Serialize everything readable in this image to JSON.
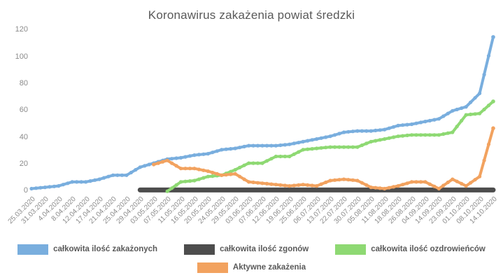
{
  "page": {
    "background": "#ffffff",
    "text_color": "#595959",
    "tick_color": "#8b8b8b"
  },
  "chart_data": {
    "type": "line",
    "title": "Koronawirus zakażenia powiat średzki",
    "xlabel": "",
    "ylabel": "",
    "ylim": [
      0,
      120
    ],
    "yticks": [
      0,
      20,
      40,
      60,
      80,
      100,
      120
    ],
    "grid": false,
    "axis_lines": false,
    "legend_position": "bottom",
    "x_tick_rotation": 45,
    "categories": [
      "25.03.2020",
      "31.03.2020",
      "4.04.2020",
      "8.04.2020",
      "12.04.2020",
      "17.04.2020",
      "21.04.2020",
      "25.04.2020",
      "29.04.2020",
      "03.05.2020",
      "07.05.2020",
      "11.05.2020",
      "16.05.2020",
      "20.05.2020",
      "24.05.2020",
      "29.05.2020",
      "03.06.2020",
      "07.06.2020",
      "12.06.2020",
      "19.06.2020",
      "25.06.2020",
      "06.07.2020",
      "13.07.2020",
      "22.07.2020",
      "30.07.2020",
      "05.08.2020",
      "11.08.2020",
      "18.08.2020",
      "26.08.2020",
      "04.09.2020",
      "14.09.2020",
      "23.09.2020",
      "01.10.2020",
      "08.10.2020",
      "14.10.2020"
    ],
    "series": [
      {
        "name": "całkowita ilość zakażonych",
        "color": "#79aede",
        "line_width": 4,
        "values": [
          2,
          3,
          4,
          7,
          7,
          9,
          12,
          12,
          18,
          21,
          24,
          25,
          27,
          28,
          31,
          32,
          34,
          34,
          34,
          35,
          37,
          39,
          41,
          44,
          45,
          45,
          46,
          49,
          50,
          52,
          54,
          60,
          63,
          73,
          115
        ]
      },
      {
        "name": "całkowita ilość zgonów",
        "color": "#4d4d4d",
        "line_width": 7,
        "values": [
          null,
          null,
          null,
          null,
          null,
          null,
          null,
          null,
          1,
          1,
          1,
          1,
          1,
          1,
          1,
          1,
          1,
          1,
          1,
          1,
          1,
          1,
          1,
          1,
          1,
          1,
          1,
          1,
          1,
          1,
          1,
          1,
          1,
          1,
          1
        ]
      },
      {
        "name": "całkowita ilość ozdrowieńców",
        "color": "#8ed973",
        "line_width": 4,
        "values": [
          null,
          null,
          null,
          null,
          null,
          null,
          null,
          null,
          null,
          null,
          0,
          7,
          8,
          11,
          12,
          16,
          21,
          21,
          26,
          26,
          31,
          32,
          33,
          33,
          33,
          37,
          39,
          41,
          42,
          42,
          42,
          44,
          57,
          58,
          67
        ]
      },
      {
        "name": "Aktywne zakażenia",
        "color": "#f2a25f",
        "line_width": 4,
        "values": [
          null,
          null,
          null,
          null,
          null,
          null,
          null,
          null,
          null,
          20,
          23,
          17,
          17,
          15,
          12,
          13,
          7,
          6,
          5,
          4,
          5,
          4,
          8,
          9,
          8,
          3,
          2,
          4,
          7,
          7,
          2,
          9,
          4,
          11,
          47
        ]
      }
    ]
  }
}
